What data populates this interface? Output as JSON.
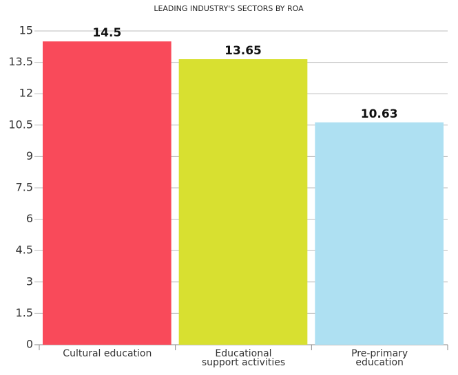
{
  "chart_data": {
    "type": "bar",
    "title": "LEADING INDUSTRY'S SECTORS BY ROA",
    "categories": [
      "Cultural education",
      "Educational support activities",
      "Pre-primary education"
    ],
    "values": [
      14.5,
      13.65,
      10.63
    ],
    "colors": [
      "#f94a5a",
      "#d8e030",
      "#aee0f2"
    ],
    "ylim": [
      0,
      15
    ],
    "yticks": [
      0,
      1.5,
      3,
      4.5,
      6,
      7.5,
      9,
      10.5,
      12,
      13.5,
      15
    ],
    "grid": true,
    "data_labels": true
  }
}
